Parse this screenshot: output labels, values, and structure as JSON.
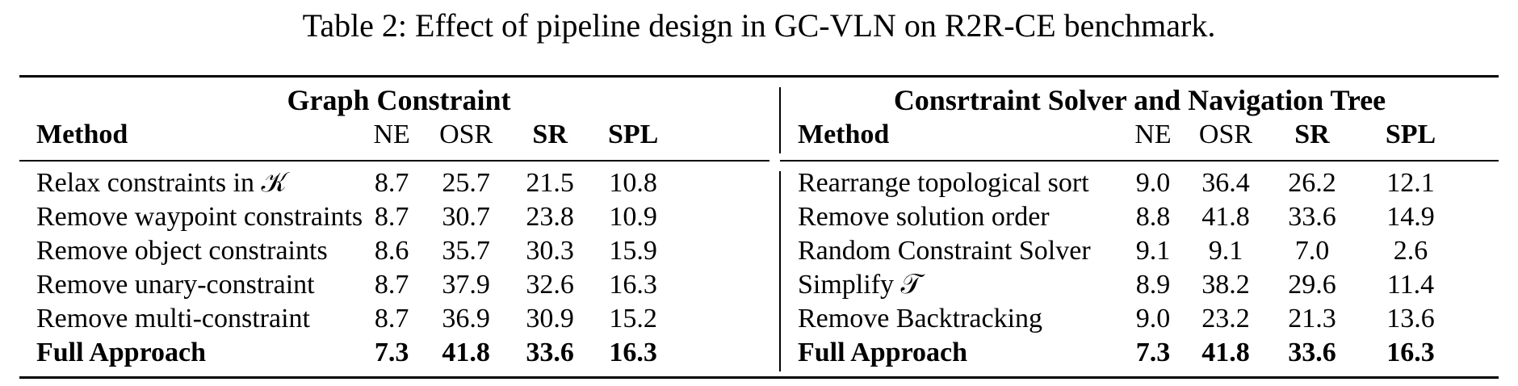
{
  "caption": "Table 2: Effect of pipeline design in GC-VLN on R2R-CE benchmark.",
  "left": {
    "group": "Graph Constraint",
    "headers": [
      "Method",
      "NE",
      "OSR",
      "SR",
      "SPL"
    ],
    "rows": [
      {
        "method": "Relax constraints in 𝒦",
        "NE": "8.7",
        "OSR": "25.7",
        "SR": "21.5",
        "SPL": "10.8"
      },
      {
        "method": "Remove waypoint constraints",
        "NE": "8.7",
        "OSR": "30.7",
        "SR": "23.8",
        "SPL": "10.9"
      },
      {
        "method": "Remove object constraints",
        "NE": "8.6",
        "OSR": "35.7",
        "SR": "30.3",
        "SPL": "15.9"
      },
      {
        "method": "Remove unary-constraint",
        "NE": "8.7",
        "OSR": "37.9",
        "SR": "32.6",
        "SPL": "16.3"
      },
      {
        "method": "Remove multi-constraint",
        "NE": "8.7",
        "OSR": "36.9",
        "SR": "30.9",
        "SPL": "15.2"
      },
      {
        "method": "Full Approach",
        "NE": "7.3",
        "OSR": "41.8",
        "SR": "33.6",
        "SPL": "16.3"
      }
    ]
  },
  "right": {
    "group": "Consrtraint Solver and Navigation Tree",
    "headers": [
      "Method",
      "NE",
      "OSR",
      "SR",
      "SPL"
    ],
    "rows": [
      {
        "method": "Rearrange topological sort",
        "NE": "9.0",
        "OSR": "36.4",
        "SR": "26.2",
        "SPL": "12.1"
      },
      {
        "method": "Remove solution order",
        "NE": "8.8",
        "OSR": "41.8",
        "SR": "33.6",
        "SPL": "14.9"
      },
      {
        "method": "Random Constraint Solver",
        "NE": "9.1",
        "OSR": "9.1",
        "SR": "7.0",
        "SPL": "2.6"
      },
      {
        "method": "Simplify 𝒯",
        "NE": "8.9",
        "OSR": "38.2",
        "SR": "29.6",
        "SPL": "11.4"
      },
      {
        "method": "Remove Backtracking",
        "NE": "9.0",
        "OSR": "23.2",
        "SR": "21.3",
        "SPL": "13.6"
      },
      {
        "method": "Full Approach",
        "NE": "7.3",
        "OSR": "41.8",
        "SR": "33.6",
        "SPL": "16.3"
      }
    ]
  }
}
